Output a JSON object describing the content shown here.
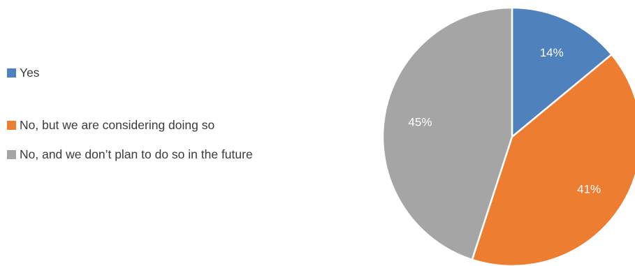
{
  "chart_data": {
    "type": "pie",
    "title": "",
    "categories": [
      "Yes",
      "No, but we are considering doing so",
      "No, and we don’t plan to do so in the future"
    ],
    "values": [
      14,
      41,
      45
    ],
    "labels": [
      "14%",
      "41%",
      "45%"
    ],
    "colors": [
      "#4f81bd",
      "#ed7d31",
      "#a5a5a5"
    ],
    "start_angle_deg": 0,
    "direction": "clockwise",
    "legend_position": "left",
    "slice_border_color": "#ffffff"
  }
}
